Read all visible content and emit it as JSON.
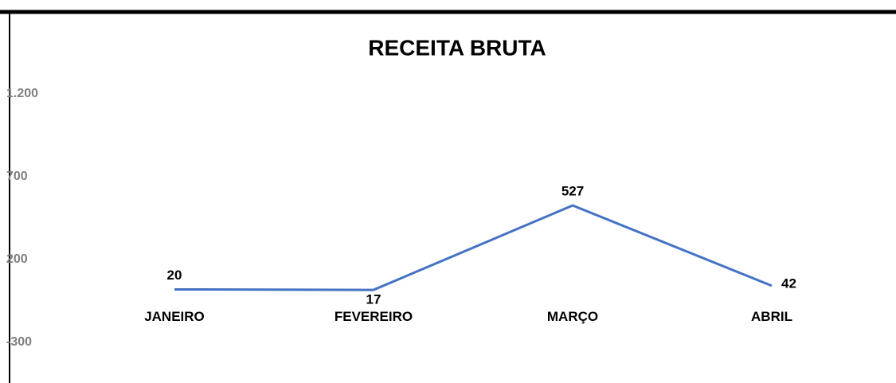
{
  "chart_data": {
    "type": "line",
    "title": "RECEITA BRUTA",
    "categories": [
      "JANEIRO",
      "FEVEREIRO",
      "MARÇO",
      "ABRIL"
    ],
    "series": [
      {
        "name": "RECEITA BRUTA",
        "color": "#4472c4",
        "values": [
          20,
          17,
          527,
          42
        ]
      }
    ],
    "ylim": [
      -300,
      1200
    ],
    "yticks": [
      -300,
      200,
      700,
      {
        "value": 1200,
        "label": "1.200"
      }
    ],
    "grid": false
  }
}
